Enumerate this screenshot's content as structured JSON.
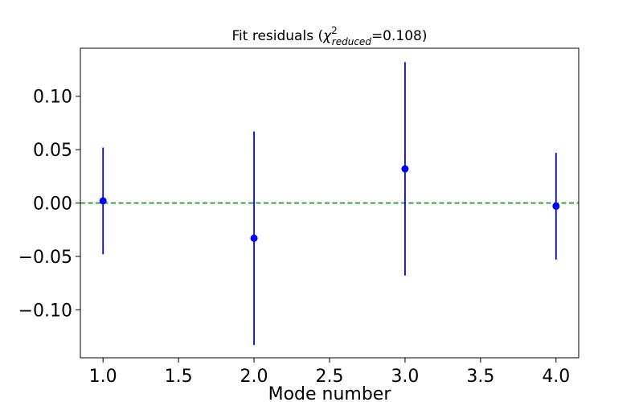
{
  "chart_data": {
    "type": "scatter",
    "title": {
      "prefix": "Fit residuals (",
      "symbol": "χ",
      "superscript": "2",
      "subscript": "reduced",
      "suffix": "=0.108)"
    },
    "xlabel": "Mode number",
    "ylabel": "",
    "xlim": [
      0.85,
      4.15
    ],
    "ylim": [
      -0.145,
      0.145
    ],
    "x_ticks": [
      "1.0",
      "1.5",
      "2.0",
      "2.5",
      "3.0",
      "3.5",
      "4.0"
    ],
    "y_ticks": [
      "−0.10",
      "−0.05",
      "0.00",
      "0.05",
      "0.10"
    ],
    "series": [
      {
        "x": [
          1.0,
          2.0,
          3.0,
          4.0
        ],
        "y": [
          0.002,
          -0.033,
          0.032,
          -0.003
        ],
        "yerr": [
          0.05,
          0.1,
          0.1,
          0.05
        ],
        "color": "#0000ff"
      }
    ],
    "reference_line": {
      "y": 0.0,
      "style": "dashed",
      "color": "#008000"
    },
    "grid": false,
    "legend": "none"
  }
}
